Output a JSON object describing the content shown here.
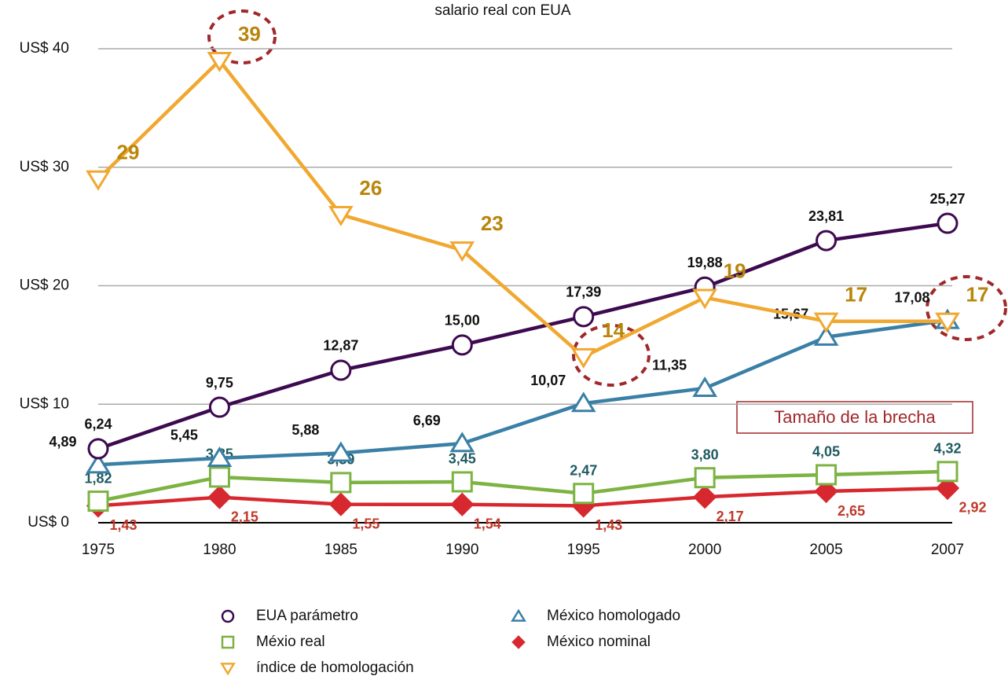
{
  "chart_data": {
    "type": "line",
    "title": "salario real con EUA",
    "categories": [
      "1975",
      "1980",
      "1985",
      "1990",
      "1995",
      "2000",
      "2005",
      "2007"
    ],
    "ylim": [
      0,
      40
    ],
    "yticks": [
      {
        "value": 0,
        "label": "US$ 0"
      },
      {
        "value": 10,
        "label": "US$ 10"
      },
      {
        "value": 20,
        "label": "US$ 20"
      },
      {
        "value": 30,
        "label": "US$ 30"
      },
      {
        "value": 40,
        "label": "US$ 40"
      }
    ],
    "grid": true,
    "annotation": "Tamaño de la brecha",
    "series": [
      {
        "name": "EUA parámetro",
        "color": "#3d0a4f",
        "marker": "circle",
        "label_color": "#111111",
        "values": [
          6.24,
          9.75,
          12.87,
          15.0,
          17.39,
          19.88,
          23.81,
          25.27
        ],
        "value_labels": [
          "6,24",
          "9,75",
          "12,87",
          "15,00",
          "17,39",
          "19,88",
          "23,81",
          "25,27"
        ]
      },
      {
        "name": "México homologado",
        "color": "#3a7fa6",
        "marker": "triangle-up",
        "label_color": "#111111",
        "values": [
          4.89,
          5.45,
          5.88,
          6.69,
          10.07,
          11.35,
          15.67,
          17.08
        ],
        "value_labels": [
          "4,89",
          "5,45",
          "5,88",
          "6,69",
          "10,07",
          "11,35",
          "15,67",
          "17,08"
        ]
      },
      {
        "name": "Méxio real",
        "color": "#7cb342",
        "marker": "square",
        "label_color": "#1f5a60",
        "values": [
          1.82,
          3.85,
          3.39,
          3.45,
          2.47,
          3.8,
          4.05,
          4.32
        ],
        "value_labels": [
          "1,82",
          "3,85",
          "3,39",
          "3,45",
          "2,47",
          "3,80",
          "4,05",
          "4,32"
        ]
      },
      {
        "name": "México nominal",
        "color": "#d7282f",
        "marker": "diamond",
        "label_color": "#c0392b",
        "values": [
          1.43,
          2.15,
          1.55,
          1.54,
          1.43,
          2.17,
          2.65,
          2.92
        ],
        "value_labels": [
          "1,43",
          "2,15",
          "1,55",
          "1,54",
          "1,43",
          "2,17",
          "2,65",
          "2,92"
        ]
      },
      {
        "name": "índice de homologación",
        "color": "#f0a830",
        "marker": "triangle-down",
        "label_color": "#b8860b",
        "values": [
          29,
          39,
          26,
          23,
          14,
          19,
          17,
          17
        ]
      }
    ]
  }
}
